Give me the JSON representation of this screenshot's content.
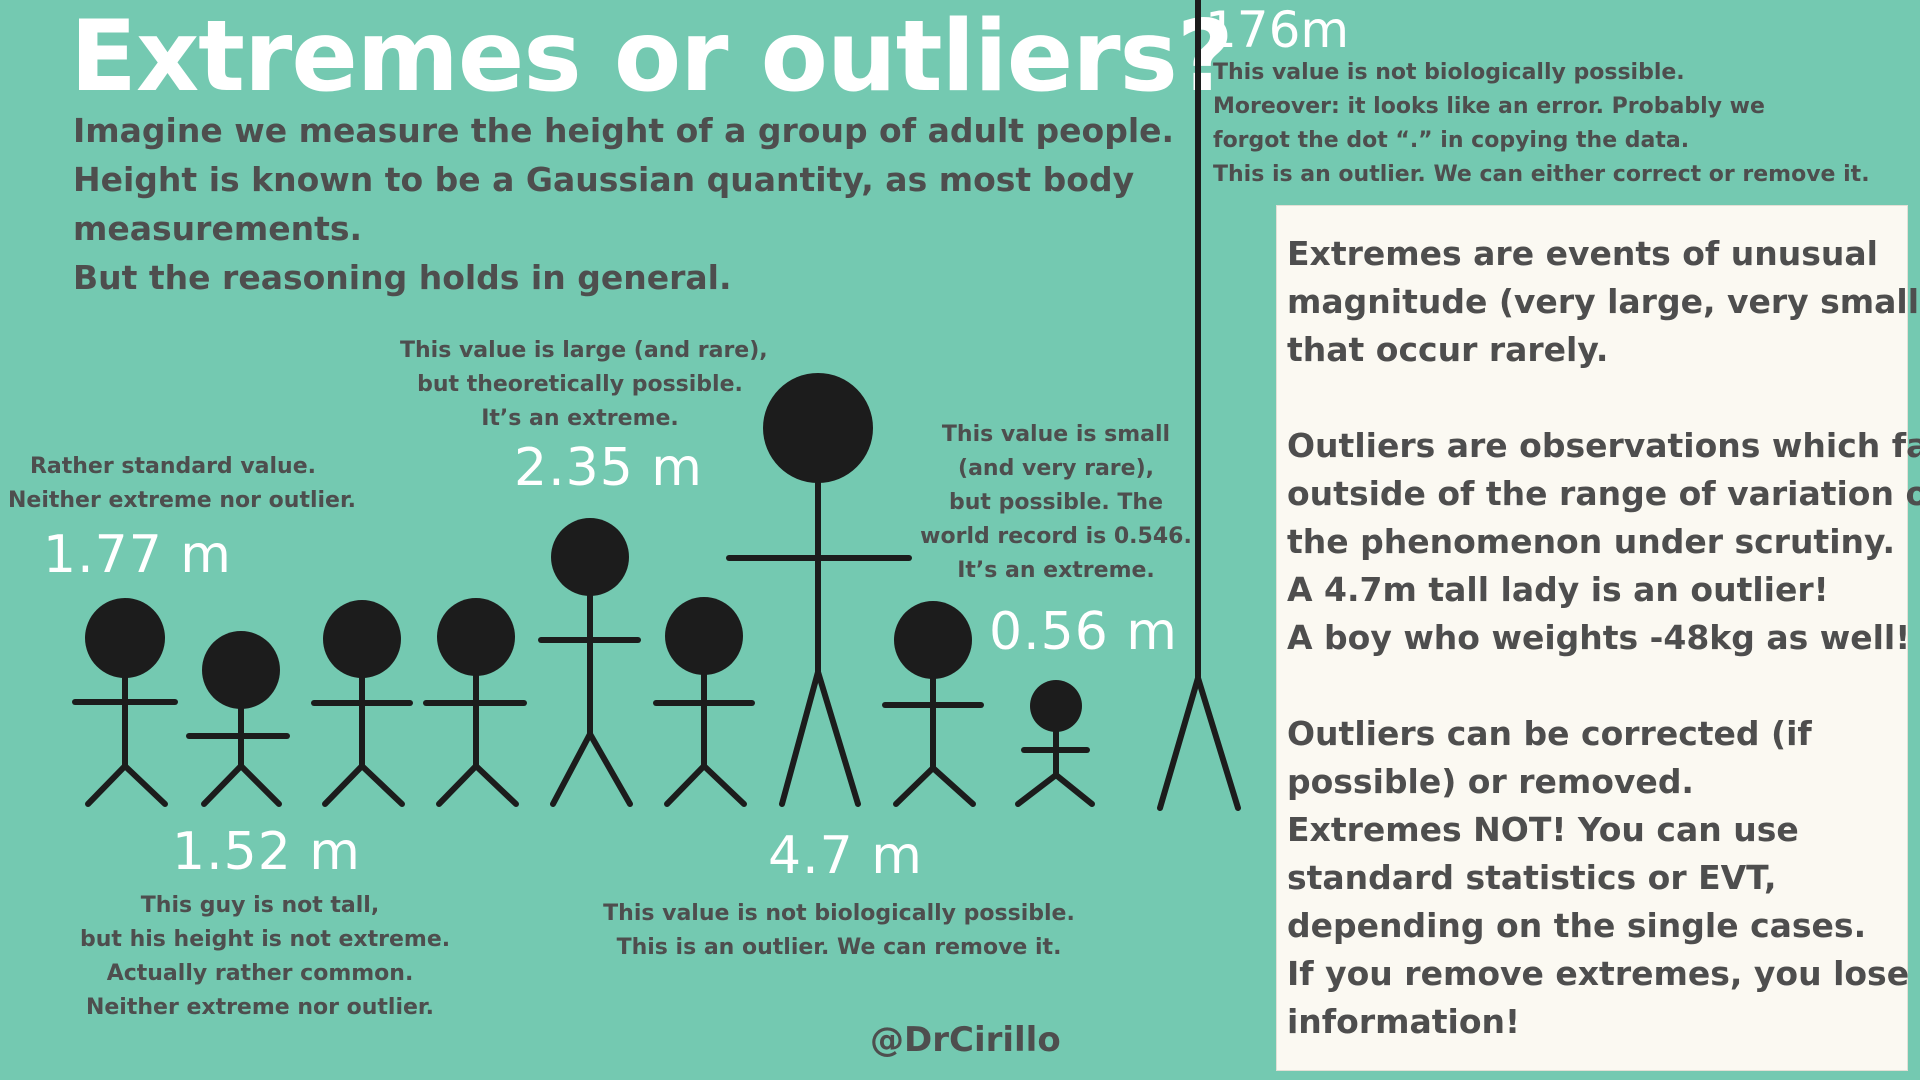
{
  "title": "Extremes or outliers?",
  "intro": {
    "lines": [
      "Imagine we measure the height of a group of adult people.",
      "Height is known to be a Gaussian quantity, as most body",
      "measurements.",
      "But the reasoning holds in general."
    ]
  },
  "annotations": {
    "standard": {
      "value": "1.77 m",
      "lines": [
        "Rather standard value.",
        "Neither extreme nor outlier."
      ]
    },
    "short": {
      "value": "1.52 m",
      "lines": [
        "This guy is not tall,",
        "but his height is not extreme.",
        "Actually rather common.",
        "Neither extreme nor outlier."
      ]
    },
    "tall": {
      "value": "2.35 m",
      "lines": [
        "This value is large (and rare),",
        "but theoretically possible.",
        "It’s an extreme."
      ]
    },
    "giant": {
      "value": "4.7 m",
      "lines": [
        "This value is not biologically possible.",
        "This is an outlier. We can remove it."
      ]
    },
    "small": {
      "value": "0.56 m",
      "lines": [
        "This value is small",
        "(and very rare),",
        "but possible. The",
        "world record is 0.546.",
        "It’s an extreme."
      ]
    },
    "huge": {
      "value": "176m",
      "lines": [
        "This value is not biologically possible.",
        "Moreover: it looks like an error. Probably we",
        "forgot the dot “.” in copying the data.",
        "This is an outlier. We can either correct or remove it."
      ]
    }
  },
  "box": {
    "lines": [
      "Extremes are events of unusual",
      "magnitude (very large, very small)",
      "that occur rarely.",
      "",
      "Outliers are observations which fall",
      "outside of the range of variation of",
      "the phenomenon under scrutiny.",
      "A 4.7m tall lady is an outlier!",
      "A boy who weights -48kg as well!",
      "",
      "Outliers can be corrected (if",
      "possible) or removed.",
      "Extremes NOT! You can use",
      "standard statistics or EVT,",
      "depending on the single cases.",
      "If you remove extremes, you lose",
      "information!"
    ]
  },
  "signature": "@DrCirillo",
  "colors": {
    "background": "#74c9b1",
    "figure": "#1c1c1c",
    "text": "#4e4e4e",
    "box": "#fbf9f2"
  }
}
